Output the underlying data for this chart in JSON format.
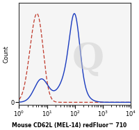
{
  "title": "Mouse CD62L (MEL-14) redFluor™ 710",
  "ylabel": "Count",
  "xlabel": "Mouse CD62L (MEL-14) redFluor™ 710",
  "xmin": 1,
  "xmax": 10000,
  "background_color": "#ffffff",
  "plot_bg_color": "#f5f5f5",
  "solid_line_color": "#1a3bbf",
  "dashed_line_color": "#c0392b",
  "watermark_color": "#cccccc"
}
